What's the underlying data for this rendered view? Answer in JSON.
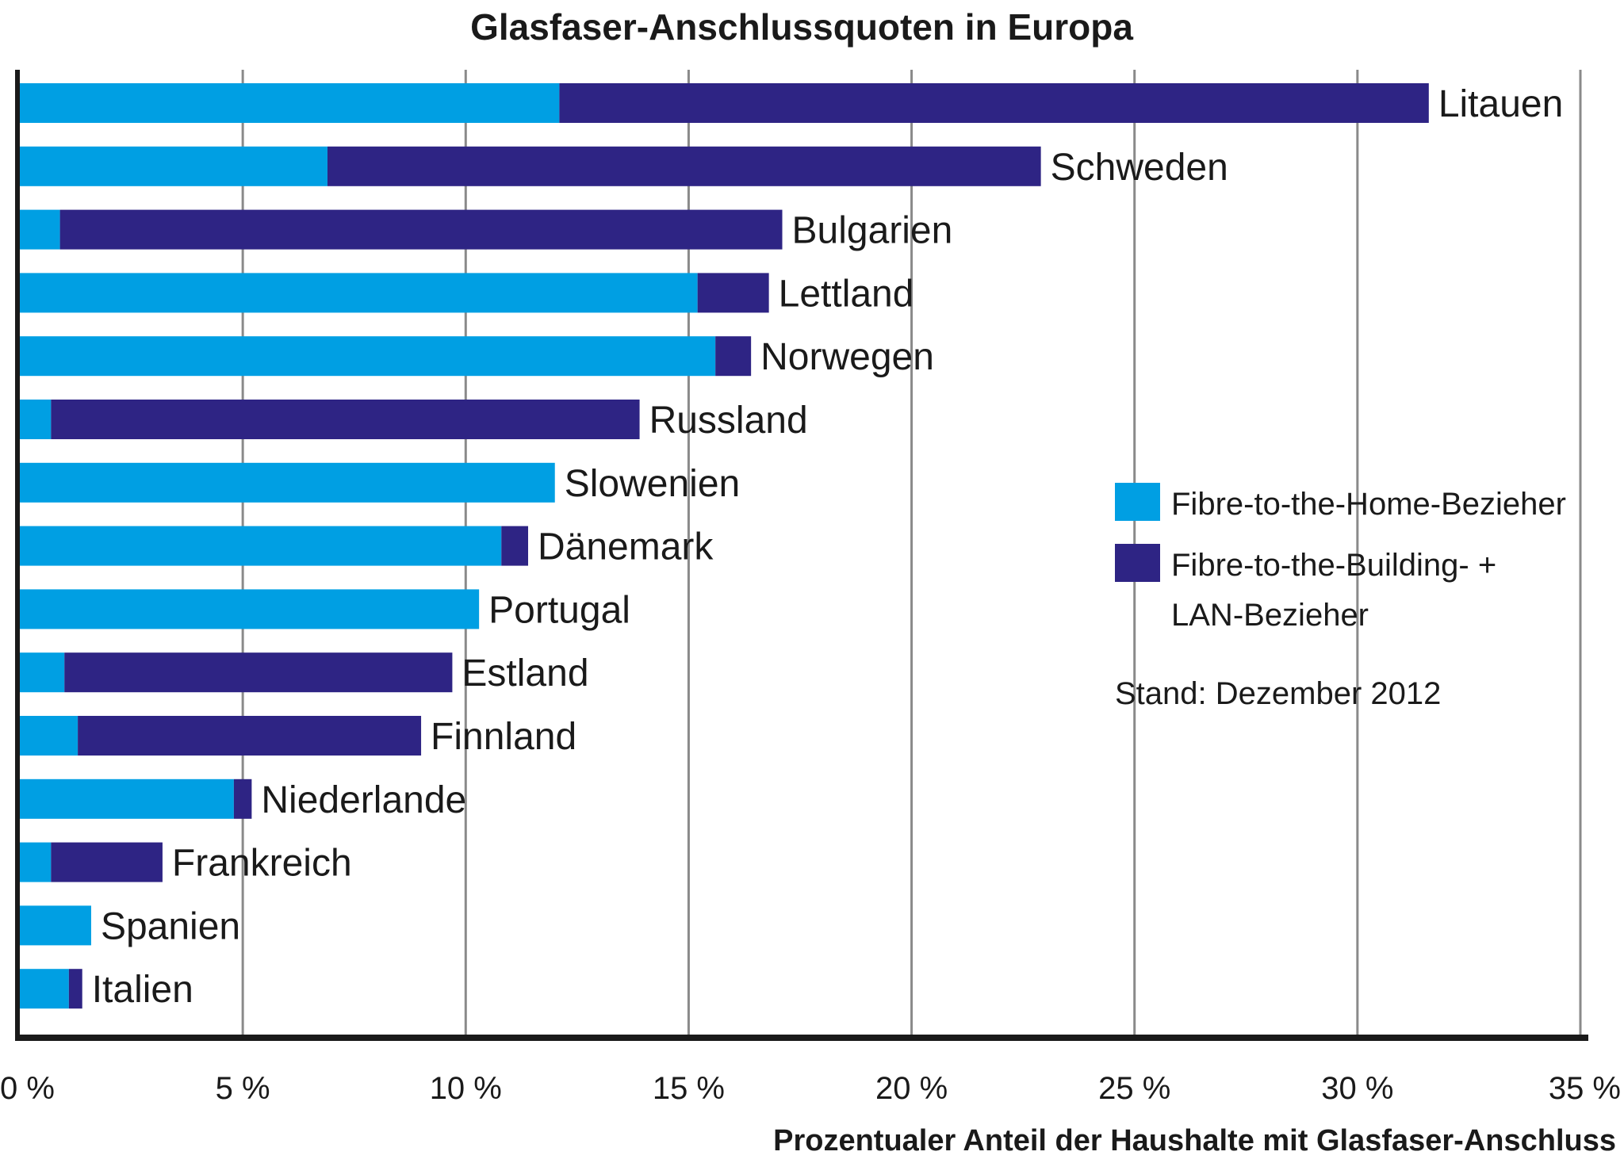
{
  "chart_data": {
    "type": "bar",
    "orientation": "horizontal",
    "stacked": true,
    "title": "Glasfaser-Anschlussquoten in Europa",
    "xlabel": "Prozentualer Anteil der Haushalte mit Glasfaser-Anschluss",
    "ylabel": "",
    "xlim": [
      0,
      35
    ],
    "xticks": [
      0,
      5,
      10,
      15,
      20,
      25,
      30,
      35
    ],
    "xtick_labels": [
      "0 %",
      "5 %",
      "10 %",
      "15 %",
      "20 %",
      "25 %",
      "30 %",
      "35 %"
    ],
    "grid": "vertical",
    "categories": [
      "Litauen",
      "Schweden",
      "Bulgarien",
      "Lettland",
      "Norwegen",
      "Russland",
      "Slowenien",
      "Dänemark",
      "Portugal",
      "Estland",
      "Finnland",
      "Niederlande",
      "Frankreich",
      "Spanien",
      "Italien"
    ],
    "series": [
      {
        "name": "Fibre-to-the-Home-Bezieher",
        "color": "#009fe3",
        "values": [
          12.1,
          6.9,
          0.9,
          15.2,
          15.6,
          0.7,
          12.0,
          10.8,
          10.3,
          1.0,
          1.3,
          4.8,
          0.7,
          1.6,
          1.1
        ]
      },
      {
        "name": "Fibre-to-the-Building- + LAN-Bezieher",
        "color": "#2e2484",
        "values": [
          19.5,
          16.0,
          16.2,
          1.6,
          0.8,
          13.2,
          0.0,
          0.6,
          0.0,
          8.7,
          7.7,
          0.4,
          2.5,
          0.0,
          0.3
        ]
      }
    ],
    "legend": {
      "placement": "right-middle",
      "entries": [
        "Fibre-to-the-Home-Bezieher",
        "Fibre-to-the-Building- +",
        "LAN-Bezieher"
      ]
    },
    "annotation": "Stand: Dezember 2012"
  }
}
